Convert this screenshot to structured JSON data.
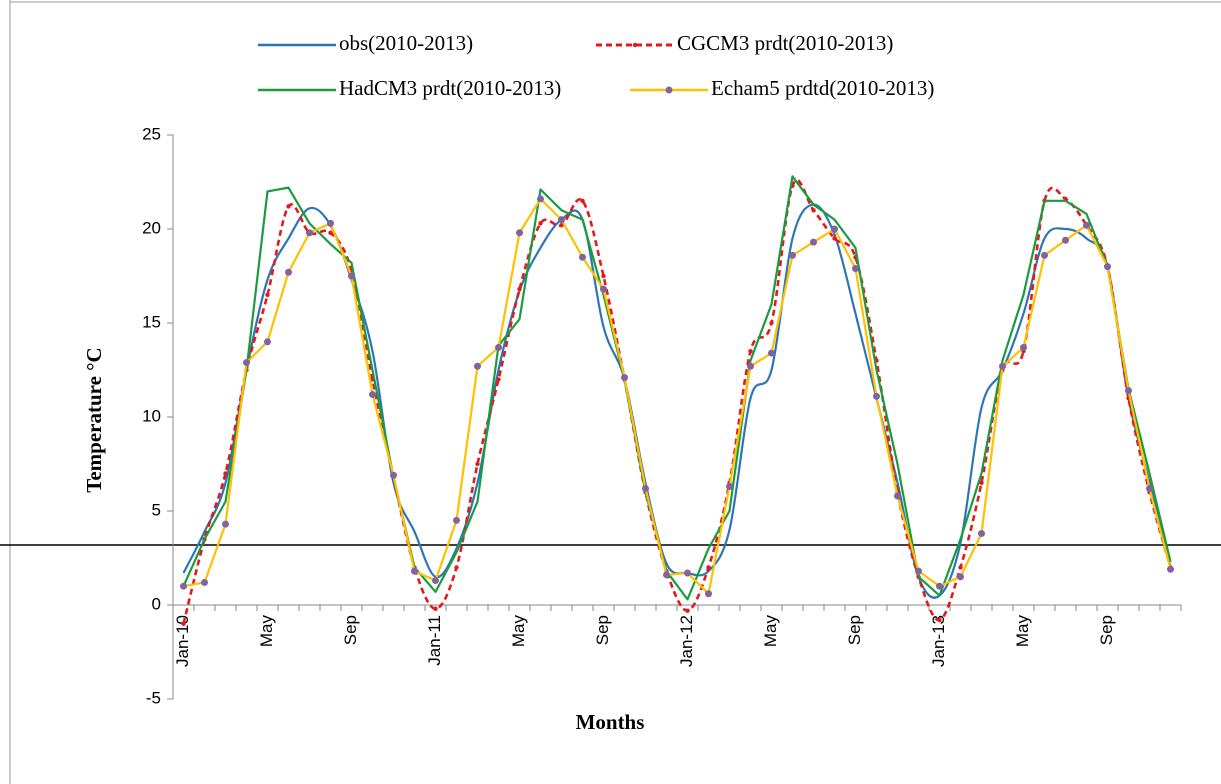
{
  "chart_data": {
    "type": "line",
    "x_label": "Months",
    "y_label": "Temperature °C",
    "categories": [
      "Jan-10",
      null,
      null,
      null,
      "May",
      null,
      null,
      null,
      "Sep",
      null,
      null,
      null,
      "Jan-11",
      null,
      null,
      null,
      "May",
      null,
      null,
      null,
      "Sep",
      null,
      null,
      null,
      "Jan-12",
      null,
      null,
      null,
      "May",
      null,
      null,
      null,
      "Sep",
      null,
      null,
      null,
      "Jan-13",
      null,
      null,
      null,
      "May",
      null,
      null,
      null,
      "Sep",
      null,
      null,
      null
    ],
    "ylim": [
      -5,
      25
    ],
    "yticks": [
      -5,
      0,
      5,
      10,
      15,
      20,
      25
    ],
    "series": [
      {
        "name": "obs(2010-2013)",
        "color": "#2e75b6",
        "values": [
          1.7,
          3.9,
          6.5,
          12.5,
          17.3,
          19.5,
          21.1,
          20.2,
          17.3,
          13.5,
          6.5,
          3.9,
          1.5,
          3.0,
          6.5,
          12.5,
          16.7,
          19.0,
          20.5,
          20.5,
          14.8,
          12.0,
          6.5,
          2.2,
          1.7,
          1.8,
          4.0,
          11.0,
          12.5,
          19.5,
          21.3,
          19.7,
          15.5,
          11.0,
          6.5,
          1.5,
          0.5,
          3.3,
          10.5,
          12.5,
          15.5,
          19.5,
          20.0,
          19.5,
          18.0,
          11.0,
          6.5,
          2.0
        ]
      },
      {
        "name": "CGCM3 prdt(2010-2013)",
        "color": "#e31a1c",
        "values": [
          -1.0,
          3.5,
          7.0,
          12.5,
          16.5,
          21.2,
          19.8,
          19.8,
          17.8,
          12.0,
          6.8,
          2.0,
          -0.2,
          2.0,
          7.5,
          12.0,
          16.8,
          20.3,
          20.2,
          21.5,
          17.5,
          12.0,
          6.0,
          1.8,
          -0.3,
          2.0,
          6.5,
          13.5,
          15.0,
          22.3,
          21.0,
          19.5,
          18.5,
          13.0,
          6.0,
          1.5,
          -0.8,
          2.0,
          6.5,
          12.5,
          13.5,
          21.5,
          21.6,
          20.2,
          18.0,
          11.0,
          6.0,
          2.0
        ]
      },
      {
        "name": "HadCM3 prdt(2010-2013)",
        "color": "#1a9c3e",
        "values": [
          1.0,
          3.5,
          5.5,
          12.5,
          22.0,
          22.2,
          20.3,
          19.2,
          18.2,
          12.5,
          6.8,
          2.0,
          0.7,
          2.8,
          5.5,
          13.8,
          15.2,
          22.1,
          21.0,
          20.5,
          16.5,
          12.0,
          6.0,
          1.8,
          0.3,
          3.0,
          5.0,
          13.0,
          16.0,
          22.8,
          21.3,
          20.5,
          19.0,
          12.5,
          7.5,
          1.5,
          0.5,
          3.5,
          7.0,
          13.0,
          16.5,
          21.5,
          21.5,
          20.8,
          18.0,
          11.5,
          7.0,
          2.3
        ]
      },
      {
        "name": "Echam5 prdtd(2010-2013)",
        "color": "#ffc000",
        "marker_color": "#8064a2",
        "values": [
          1.0,
          1.2,
          4.3,
          12.9,
          14.0,
          17.7,
          19.8,
          20.3,
          17.5,
          11.2,
          6.9,
          1.8,
          1.3,
          4.5,
          12.7,
          13.7,
          19.8,
          21.6,
          20.5,
          18.5,
          16.8,
          12.1,
          6.2,
          1.6,
          1.7,
          0.6,
          6.3,
          12.7,
          13.4,
          18.6,
          19.3,
          20.0,
          17.9,
          11.1,
          5.8,
          1.8,
          1.0,
          1.5,
          3.8,
          12.7,
          13.7,
          18.6,
          19.4,
          20.2,
          18.0,
          11.4,
          6.2,
          1.9
        ]
      }
    ]
  }
}
